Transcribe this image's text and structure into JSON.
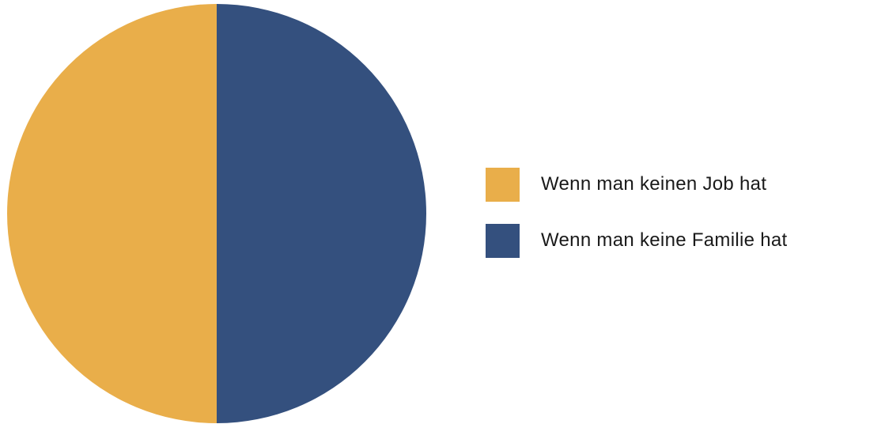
{
  "chart_data": {
    "type": "pie",
    "title": "",
    "slices": [
      {
        "label": "Wenn man keinen Job hat",
        "value": 50,
        "color": "#E9AE4A"
      },
      {
        "label": "Wenn man keine Familie hat",
        "value": 50,
        "color": "#34507E"
      }
    ],
    "legend_position": "right"
  },
  "legend": {
    "items": [
      {
        "label": "Wenn man keinen Job hat",
        "color": "#E9AE4A"
      },
      {
        "label": "Wenn man keine Familie hat",
        "color": "#34507E"
      }
    ]
  }
}
